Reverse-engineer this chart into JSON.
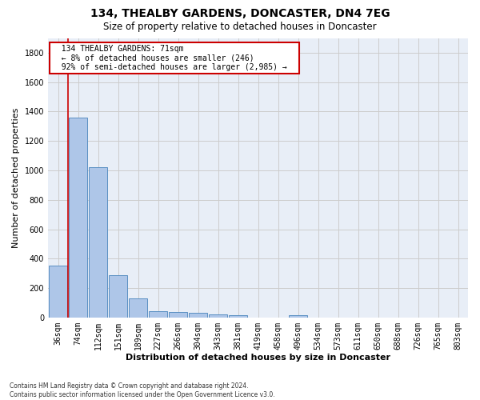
{
  "title": "134, THEALBY GARDENS, DONCASTER, DN4 7EG",
  "subtitle": "Size of property relative to detached houses in Doncaster",
  "xlabel": "Distribution of detached houses by size in Doncaster",
  "ylabel": "Number of detached properties",
  "bar_labels": [
    "36sqm",
    "74sqm",
    "112sqm",
    "151sqm",
    "189sqm",
    "227sqm",
    "266sqm",
    "304sqm",
    "343sqm",
    "381sqm",
    "419sqm",
    "458sqm",
    "496sqm",
    "534sqm",
    "573sqm",
    "611sqm",
    "650sqm",
    "688sqm",
    "726sqm",
    "765sqm",
    "803sqm"
  ],
  "bar_values": [
    355,
    1360,
    1020,
    290,
    128,
    42,
    35,
    30,
    20,
    18,
    0,
    0,
    18,
    0,
    0,
    0,
    0,
    0,
    0,
    0,
    0
  ],
  "bar_color": "#aec6e8",
  "bar_edge_color": "#5a8fc2",
  "ylim": [
    0,
    1900
  ],
  "yticks": [
    0,
    200,
    400,
    600,
    800,
    1000,
    1200,
    1400,
    1600,
    1800
  ],
  "annotation_text": "  134 THEALBY GARDENS: 71sqm  \n  ← 8% of detached houses are smaller (246)  \n  92% of semi-detached houses are larger (2,985) →  ",
  "annotation_box_color": "#ffffff",
  "annotation_box_edge": "#cc0000",
  "vline_color": "#cc0000",
  "grid_color": "#cccccc",
  "bg_color": "#e8eef7",
  "footnote": "Contains HM Land Registry data © Crown copyright and database right 2024.\nContains public sector information licensed under the Open Government Licence v3.0.",
  "title_fontsize": 10,
  "subtitle_fontsize": 8.5,
  "ylabel_fontsize": 8,
  "xlabel_fontsize": 8,
  "tick_fontsize": 7,
  "annot_fontsize": 7,
  "footnote_fontsize": 5.5
}
